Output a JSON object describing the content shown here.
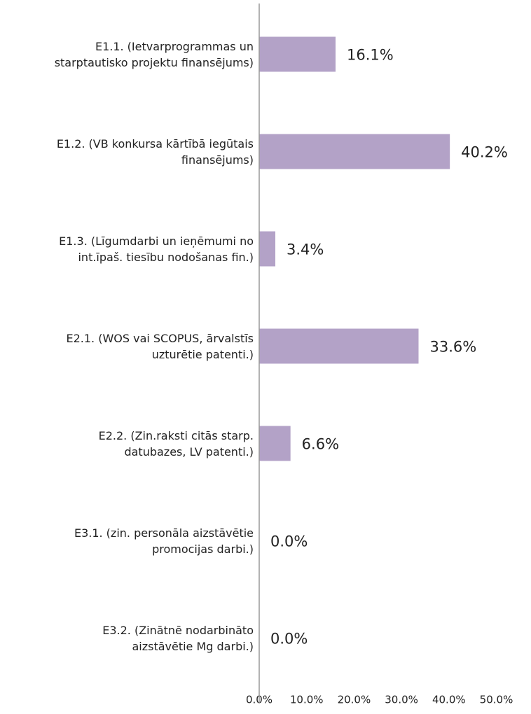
{
  "chart_data": {
    "type": "barh",
    "categories": [
      "E1.1. (Ietvarprogrammas un starptautisko projektu finansējums)",
      "E1.2. (VB konkursa kārtībā iegūtais finansējums)",
      "E1.3. (Līgumdarbi un ieņēmumi no int.īpaš. tiesību nodošanas fin.)",
      "E2.1. (WOS vai SCOPUS, ārvalstīs uzturētie patenti.)",
      "E2.2. (Zin.raksti citās starp. datubazes, LV patenti.)",
      "E3.1. (zin. personāla aizstāvētie promocijas darbi.)",
      "E3.2. (Zinātnē nodarbināto aizstāvētie Mg darbi.)"
    ],
    "values": [
      16.1,
      40.2,
      3.4,
      33.6,
      6.6,
      0,
      0
    ],
    "value_labels": [
      "16.1%",
      "40.2%",
      "3.4%",
      "33.6%",
      "6.6%",
      "0.0%",
      "0.0%"
    ],
    "color": "#b3a2c7",
    "xlim": [
      0,
      50
    ],
    "xticks": [
      {
        "value": 0,
        "label": "0.0%"
      },
      {
        "value": 10,
        "label": "10.0%"
      },
      {
        "value": 20,
        "label": "20.0%"
      },
      {
        "value": 30,
        "label": "30.0%"
      },
      {
        "value": 40,
        "label": "40.0%"
      },
      {
        "value": 50,
        "label": "50.0%"
      }
    ],
    "grid": false
  }
}
